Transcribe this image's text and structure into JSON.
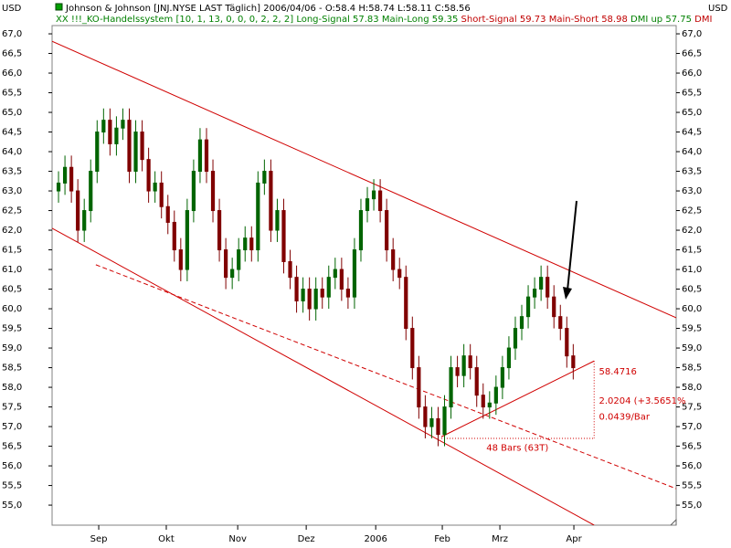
{
  "chart_data": {
    "type": "candlestick",
    "currency_left": "USD",
    "currency_right": "USD",
    "title": "Johnson & Johnson [JNJ.NYSE LAST Täglich] 2006/04/06 - O:58.4 H:58.74 L:58.11 C:58.56",
    "indicator_line": [
      {
        "text": "XX !!!_KO-Handelssystem [10, 1, 13, 0, 0, 0, 2, 2, 2]",
        "color": "#008000"
      },
      {
        "text": "Long-Signal 57.83",
        "color": "#008000"
      },
      {
        "text": "Main-Long 59.35",
        "color": "#008000"
      },
      {
        "text": "Short-Signal 59.73",
        "color": "#c00000"
      },
      {
        "text": "Main-Short 58.98",
        "color": "#c00000"
      },
      {
        "text": "DMI up 57.75",
        "color": "#008000"
      },
      {
        "text": "DMI",
        "color": "#c00000"
      }
    ],
    "up_color": "#006400",
    "down_color": "#800000",
    "line_color": "#d00000",
    "xlim": [
      0,
      194
    ],
    "ylim": [
      54.49,
      67.21
    ],
    "xticks": [
      {
        "value": 14.5,
        "label": "Sep"
      },
      {
        "value": 35.5,
        "label": "Okt"
      },
      {
        "value": 57.7,
        "label": "Nov"
      },
      {
        "value": 79,
        "label": "Dez"
      },
      {
        "value": 100.6,
        "label": "2006"
      },
      {
        "value": 121.3,
        "label": "Feb"
      },
      {
        "value": 139.2,
        "label": "Mrz"
      },
      {
        "value": 162.2,
        "label": "Apr"
      }
    ],
    "yticks": [
      {
        "value": 55,
        "label": "55,0"
      },
      {
        "value": 55.5,
        "label": "55,5"
      },
      {
        "value": 56,
        "label": "56,0"
      },
      {
        "value": 56.5,
        "label": "56,5"
      },
      {
        "value": 57,
        "label": "57,0"
      },
      {
        "value": 57.5,
        "label": "57,5"
      },
      {
        "value": 58,
        "label": "58,0"
      },
      {
        "value": 58.5,
        "label": "58,5"
      },
      {
        "value": 59,
        "label": "59,0"
      },
      {
        "value": 59.5,
        "label": "59,5"
      },
      {
        "value": 60,
        "label": "60,0"
      },
      {
        "value": 60.5,
        "label": "60,5"
      },
      {
        "value": 61,
        "label": "61,0"
      },
      {
        "value": 61.5,
        "label": "61,5"
      },
      {
        "value": 62,
        "label": "62,0"
      },
      {
        "value": 62.5,
        "label": "62,5"
      },
      {
        "value": 63,
        "label": "63,0"
      },
      {
        "value": 63.5,
        "label": "63,5"
      },
      {
        "value": 64,
        "label": "64,0"
      },
      {
        "value": 64.5,
        "label": "64,5"
      },
      {
        "value": 65,
        "label": "65,0"
      },
      {
        "value": 65.5,
        "label": "65,5"
      },
      {
        "value": 66,
        "label": "66,0"
      },
      {
        "value": 66.5,
        "label": "66,5"
      },
      {
        "value": 67,
        "label": "67,0"
      }
    ],
    "x": [
      2,
      4,
      6,
      8,
      10,
      12,
      14,
      16,
      18,
      20,
      22,
      24,
      26,
      28,
      30,
      32,
      34,
      36,
      38,
      40,
      42,
      44,
      46,
      48,
      50,
      52,
      54,
      56,
      58,
      60,
      62,
      64,
      66,
      68,
      70,
      72,
      74,
      76,
      78,
      80,
      82,
      84,
      86,
      88,
      90,
      92,
      94,
      96,
      98,
      100,
      102,
      104,
      106,
      108,
      110,
      112,
      114,
      116,
      118,
      120,
      122,
      124,
      126,
      128,
      130,
      132,
      134,
      136,
      138,
      140,
      142,
      144,
      146,
      148,
      150,
      152,
      154,
      156,
      158,
      160,
      162
    ],
    "open": [
      63.0,
      63.2,
      63.6,
      63.0,
      62.0,
      62.5,
      63.5,
      64.5,
      64.8,
      64.2,
      64.6,
      64.8,
      63.5,
      64.5,
      63.8,
      63.0,
      63.2,
      62.6,
      62.2,
      61.5,
      61.0,
      62.5,
      63.5,
      64.3,
      63.5,
      62.5,
      61.5,
      60.8,
      61.0,
      61.5,
      61.8,
      61.5,
      63.2,
      63.5,
      62.0,
      62.5,
      61.2,
      60.8,
      60.2,
      60.5,
      60.0,
      60.5,
      60.3,
      60.8,
      61.0,
      60.5,
      60.3,
      61.5,
      62.5,
      62.8,
      63.0,
      62.5,
      61.5,
      61.0,
      60.8,
      59.5,
      58.5,
      57.5,
      57.0,
      57.2,
      56.8,
      57.5,
      58.5,
      58.3,
      58.8,
      58.5,
      57.8,
      57.5,
      57.6,
      58.0,
      58.5,
      59.0,
      59.5,
      59.8,
      60.3,
      60.5,
      60.8,
      60.3,
      59.8,
      59.5,
      58.8
    ],
    "high": [
      63.5,
      63.9,
      63.9,
      63.3,
      62.8,
      63.8,
      64.8,
      65.1,
      65.1,
      64.9,
      65.1,
      65.1,
      64.8,
      64.8,
      64.1,
      63.5,
      63.5,
      62.9,
      62.5,
      61.8,
      62.8,
      63.8,
      64.6,
      64.6,
      63.8,
      62.8,
      61.8,
      61.3,
      61.8,
      62.1,
      62.1,
      63.5,
      63.8,
      63.8,
      62.8,
      62.8,
      61.5,
      61.1,
      60.8,
      60.8,
      60.8,
      60.8,
      61.1,
      61.3,
      61.3,
      60.8,
      61.8,
      62.8,
      63.1,
      63.3,
      63.3,
      62.8,
      61.8,
      61.3,
      61.1,
      59.8,
      58.8,
      57.8,
      57.5,
      57.5,
      57.8,
      58.8,
      58.8,
      59.1,
      59.1,
      58.8,
      58.1,
      57.9,
      58.3,
      58.8,
      59.3,
      59.8,
      60.1,
      60.6,
      60.8,
      61.1,
      61.1,
      60.6,
      60.1,
      59.8,
      59.1
    ],
    "low": [
      62.7,
      62.9,
      62.7,
      61.7,
      61.7,
      62.2,
      63.2,
      64.2,
      63.9,
      63.9,
      64.3,
      63.2,
      63.2,
      63.5,
      62.7,
      62.7,
      62.3,
      61.9,
      61.2,
      60.7,
      60.7,
      62.2,
      63.2,
      63.2,
      62.2,
      61.2,
      60.5,
      60.5,
      60.7,
      61.2,
      61.2,
      61.2,
      62.9,
      61.7,
      61.7,
      60.9,
      60.5,
      59.9,
      59.9,
      59.7,
      59.7,
      60.0,
      60.0,
      60.5,
      60.2,
      60.0,
      60.0,
      61.2,
      62.2,
      62.5,
      62.2,
      61.2,
      60.7,
      60.5,
      59.2,
      58.2,
      57.2,
      56.7,
      56.7,
      56.5,
      56.5,
      57.2,
      58.0,
      58.0,
      58.2,
      57.5,
      57.2,
      57.2,
      57.3,
      57.7,
      58.2,
      58.7,
      59.2,
      59.5,
      60.0,
      60.2,
      60.0,
      59.5,
      59.2,
      58.5,
      58.2
    ],
    "close": [
      63.2,
      63.6,
      63.0,
      62.0,
      62.5,
      63.5,
      64.5,
      64.8,
      64.2,
      64.6,
      64.8,
      63.5,
      64.5,
      63.8,
      63.0,
      63.2,
      62.6,
      62.2,
      61.5,
      61.0,
      62.5,
      63.5,
      64.3,
      63.5,
      62.5,
      61.5,
      60.8,
      61.0,
      61.5,
      61.8,
      61.5,
      63.2,
      63.5,
      62.0,
      62.5,
      61.2,
      60.8,
      60.2,
      60.5,
      60.0,
      60.5,
      60.3,
      60.8,
      61.0,
      60.5,
      60.3,
      61.5,
      62.5,
      62.8,
      63.0,
      62.5,
      61.5,
      61.0,
      60.8,
      59.5,
      58.5,
      57.5,
      57.0,
      57.2,
      56.8,
      57.5,
      58.5,
      58.3,
      58.8,
      58.5,
      57.8,
      57.5,
      57.6,
      58.0,
      58.5,
      59.0,
      59.5,
      59.8,
      60.3,
      60.5,
      60.8,
      60.3,
      59.8,
      59.5,
      58.8,
      58.5
    ],
    "trendlines": [
      {
        "x": [
          0,
          194
        ],
        "y": [
          66.81,
          59.77
        ],
        "style": "solid"
      },
      {
        "x": [
          0,
          168.5
        ],
        "y": [
          62.05,
          54.49
        ],
        "style": "solid"
      },
      {
        "x": [
          13.6,
          194
        ],
        "y": [
          61.12,
          55.42
        ],
        "style": "dashed"
      },
      {
        "x": [
          121,
          168.5
        ],
        "y": [
          56.74,
          58.67
        ],
        "style": "solid"
      },
      {
        "x": [
          121,
          168.5
        ],
        "y": [
          56.7,
          56.7
        ],
        "style": "dotted"
      },
      {
        "x": [
          168.5,
          168.5
        ],
        "y": [
          58.67,
          56.7
        ],
        "style": "dotted"
      }
    ],
    "annotations": [
      {
        "text": "58.4716",
        "x": 170,
        "y": 58.4
      },
      {
        "text": "2.0204 (+3.5651%",
        "x": 170,
        "y": 57.65
      },
      {
        "text": "0.0439/Bar",
        "x": 170,
        "y": 57.25
      },
      {
        "text": "48 Bars (63T)",
        "x": 135,
        "y": 56.45
      }
    ]
  }
}
